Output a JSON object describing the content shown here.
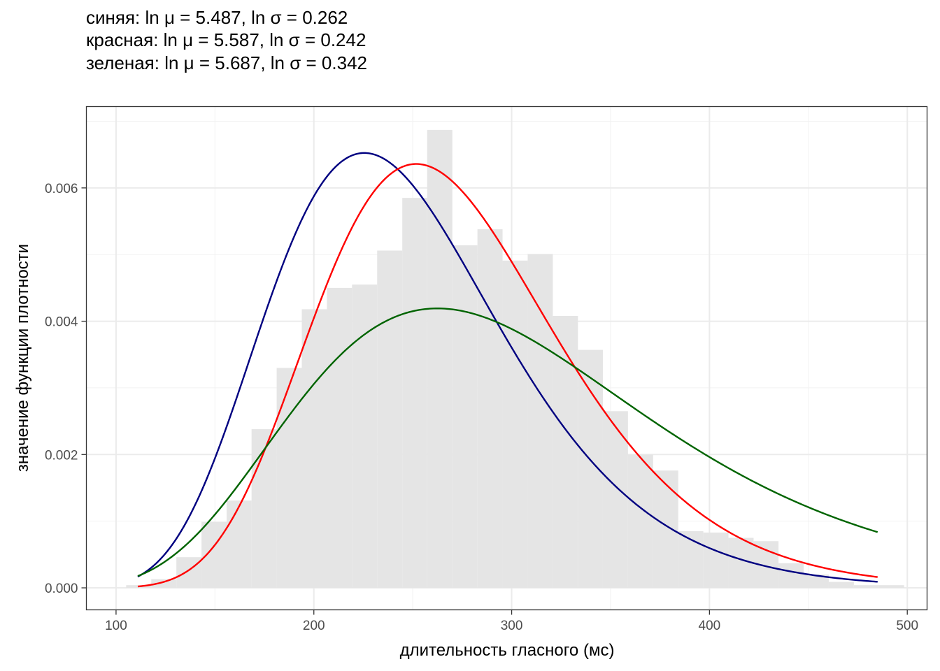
{
  "chart_data": {
    "type": "histogram",
    "title_lines": [
      "синяя: ln μ = 5.487, ln σ = 0.262",
      "красная: ln μ = 5.587, ln σ = 0.242",
      "зеленая: ln μ = 5.687, ln σ = 0.342"
    ],
    "xlabel": "длительность гласного (мс)",
    "ylabel": "значение функции плотности",
    "xlim": [
      85,
      510
    ],
    "ylim": [
      -0.00033,
      0.00722
    ],
    "x_ticks": [
      100,
      200,
      300,
      400,
      500
    ],
    "x_tick_labels": [
      "100",
      "200",
      "300",
      "400",
      "500"
    ],
    "y_ticks": [
      0,
      0.002,
      0.004,
      0.006
    ],
    "y_tick_labels": [
      "0.000",
      "0.002",
      "0.004",
      "0.006"
    ],
    "grid": true,
    "histogram": {
      "color": "#e5e5e5",
      "bins": [
        {
          "x0": 105.1,
          "x1": 117.8,
          "density": 4e-05
        },
        {
          "x0": 117.8,
          "x1": 130.5,
          "density": 0.00013
        },
        {
          "x0": 130.5,
          "x1": 143.2,
          "density": 0.00046
        },
        {
          "x0": 143.2,
          "x1": 155.9,
          "density": 0.00099
        },
        {
          "x0": 155.9,
          "x1": 168.5,
          "density": 0.00131
        },
        {
          "x0": 168.5,
          "x1": 181.2,
          "density": 0.00238
        },
        {
          "x0": 181.2,
          "x1": 193.9,
          "density": 0.0033
        },
        {
          "x0": 193.9,
          "x1": 206.6,
          "density": 0.00418
        },
        {
          "x0": 206.6,
          "x1": 219.3,
          "density": 0.0045
        },
        {
          "x0": 219.3,
          "x1": 232.0,
          "density": 0.00455
        },
        {
          "x0": 232.0,
          "x1": 244.7,
          "density": 0.00506
        },
        {
          "x0": 244.7,
          "x1": 257.3,
          "density": 0.00585
        },
        {
          "x0": 257.3,
          "x1": 270.0,
          "density": 0.00687
        },
        {
          "x0": 270.0,
          "x1": 282.7,
          "density": 0.00514
        },
        {
          "x0": 282.7,
          "x1": 295.4,
          "density": 0.00538
        },
        {
          "x0": 295.4,
          "x1": 308.1,
          "density": 0.00491
        },
        {
          "x0": 308.1,
          "x1": 320.8,
          "density": 0.00501
        },
        {
          "x0": 320.8,
          "x1": 333.5,
          "density": 0.00408
        },
        {
          "x0": 333.5,
          "x1": 346.1,
          "density": 0.00357
        },
        {
          "x0": 346.1,
          "x1": 358.8,
          "density": 0.00265
        },
        {
          "x0": 358.8,
          "x1": 371.5,
          "density": 0.002
        },
        {
          "x0": 371.5,
          "x1": 384.2,
          "density": 0.00176
        },
        {
          "x0": 384.2,
          "x1": 396.9,
          "density": 0.00085
        },
        {
          "x0": 396.9,
          "x1": 409.6,
          "density": 0.00083
        },
        {
          "x0": 409.6,
          "x1": 422.3,
          "density": 0.00075
        },
        {
          "x0": 422.3,
          "x1": 434.9,
          "density": 0.0007
        },
        {
          "x0": 434.9,
          "x1": 447.6,
          "density": 0.00037
        },
        {
          "x0": 447.6,
          "x1": 460.3,
          "density": 0.0002
        },
        {
          "x0": 460.3,
          "x1": 473.0,
          "density": 9e-05
        },
        {
          "x0": 473.0,
          "x1": 485.7,
          "density": 4e-05
        },
        {
          "x0": 485.7,
          "x1": 498.4,
          "density": 4e-05
        }
      ]
    },
    "curves": [
      {
        "distribution": "lognormal",
        "meanlog": 5.487,
        "sdlog": 0.262,
        "color": "#000080",
        "x_range": [
          111,
          485
        ]
      },
      {
        "distribution": "lognormal",
        "meanlog": 5.587,
        "sdlog": 0.242,
        "color": "#ff0000",
        "x_range": [
          111,
          485
        ]
      },
      {
        "distribution": "lognormal",
        "meanlog": 5.687,
        "sdlog": 0.342,
        "color": "#006400",
        "x_range": [
          111,
          485
        ]
      }
    ]
  }
}
